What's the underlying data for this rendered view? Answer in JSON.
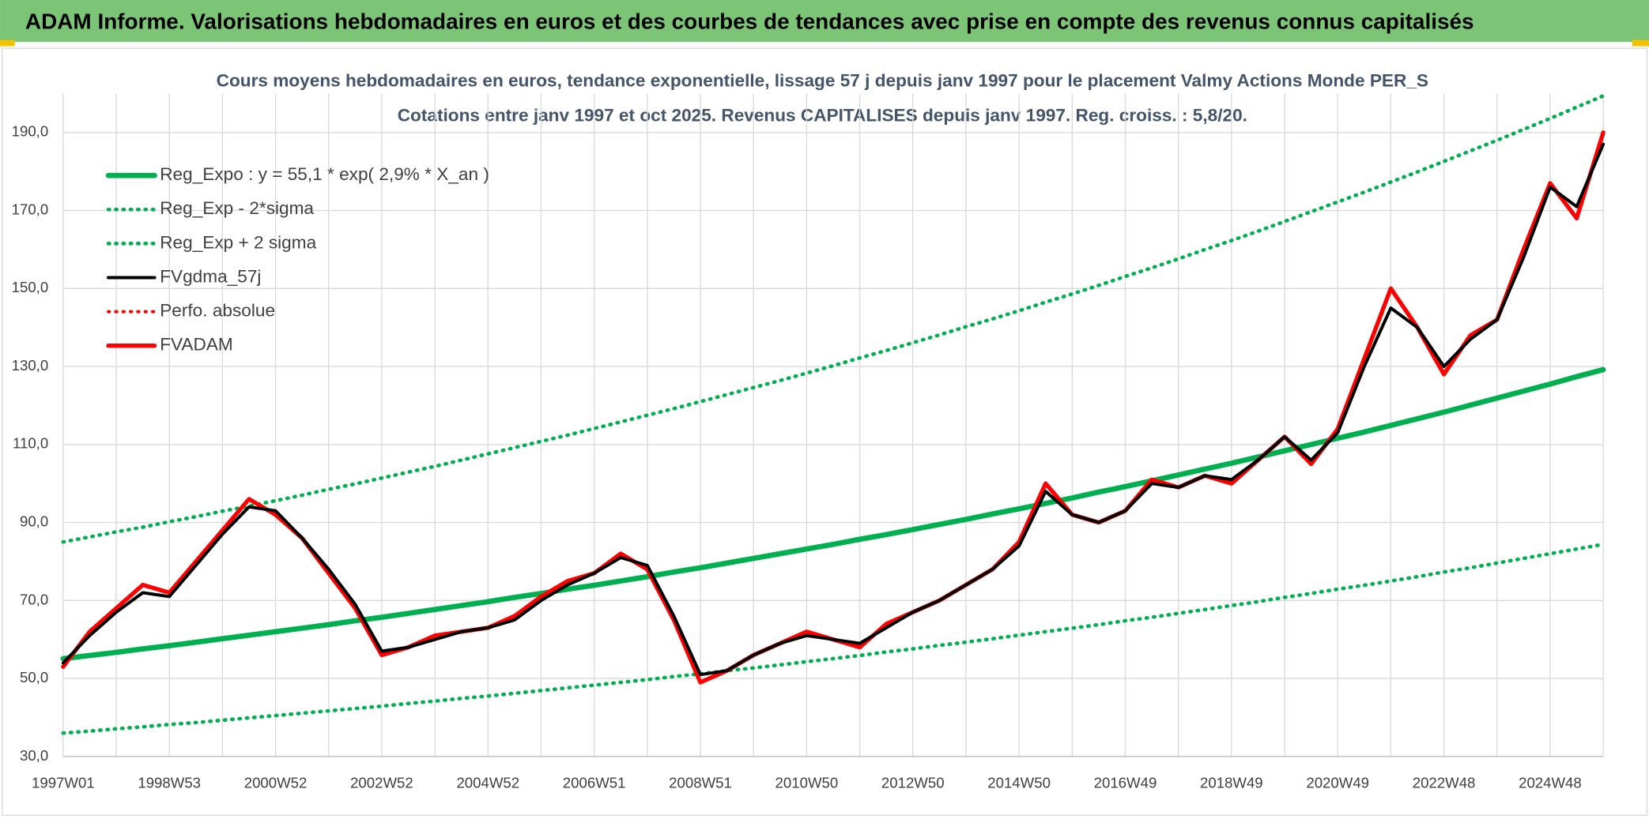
{
  "header": {
    "title": "ADAM Informe. Valorisations hebdomadaires en euros et des courbes de tendances avec prise en compte des revenus connus capitalisés"
  },
  "chart_data": {
    "type": "line",
    "title": "Cours moyens hebdomadaires en euros, tendance exponentielle, lissage 57 j depuis janv 1997 pour le placement Valmy Actions Monde PER_S",
    "subtitle": "Cotations entre janv 1997 et oct 2025. Revenus CAPITALISES depuis janv 1997. Reg. croiss. : 5,8/20.",
    "categories": [
      "1997W01",
      null,
      null,
      null,
      "1998W53",
      null,
      null,
      null,
      "2000W52",
      null,
      null,
      null,
      "2002W52",
      null,
      null,
      null,
      "2004W52",
      null,
      null,
      null,
      "2006W51",
      null,
      null,
      null,
      "2008W51",
      null,
      null,
      null,
      "2010W50",
      null,
      null,
      null,
      "2012W50",
      null,
      null,
      null,
      "2014W50",
      null,
      null,
      null,
      "2016W49",
      null,
      null,
      null,
      "2018W49",
      null,
      null,
      null,
      "2020W49",
      null,
      null,
      null,
      "2022W48",
      null,
      null,
      null,
      "2024W48",
      null,
      null
    ],
    "ylim": [
      30,
      200
    ],
    "yticks": [
      {
        "value": 30,
        "label": "30,0"
      },
      {
        "value": 50,
        "label": "50,0"
      },
      {
        "value": 70,
        "label": "70,0"
      },
      {
        "value": 90,
        "label": "90,0"
      },
      {
        "value": 110,
        "label": "110,0"
      },
      {
        "value": 130,
        "label": "130,0"
      },
      {
        "value": 150,
        "label": "150,0"
      },
      {
        "value": 170,
        "label": "170,0"
      },
      {
        "value": 190,
        "label": "190,0"
      }
    ],
    "grid": true,
    "legend": "upper left",
    "series": [
      {
        "name": "Reg_Expo : y = 55,1 * exp( 2,9% *  X_an )",
        "color": "#00b050",
        "linestyle": "solid",
        "values": [
          55.1,
          55.9,
          56.7,
          57.6,
          58.4,
          59.3,
          60.2,
          61.1,
          62.0,
          62.9,
          63.8,
          64.8,
          65.7,
          66.7,
          67.7,
          68.7,
          69.7,
          70.8,
          71.8,
          72.9,
          73.9,
          75.0,
          76.1,
          77.3,
          78.4,
          79.6,
          80.8,
          82.0,
          83.2,
          84.4,
          85.7,
          86.9,
          88.2,
          89.5,
          90.8,
          92.2,
          93.5,
          94.9,
          96.3,
          97.8,
          99.2,
          100.7,
          102.2,
          103.7,
          105.2,
          106.8,
          108.4,
          110.0,
          111.6,
          113.2,
          114.9,
          116.6,
          118.3,
          120.1,
          121.9,
          123.7,
          125.5,
          127.4,
          129.2
        ]
      },
      {
        "name": "Reg_Exp - 2*sigma",
        "color": "#00b050",
        "linestyle": "dotted",
        "values": [
          36.0,
          36.5,
          37.1,
          37.6,
          38.2,
          38.7,
          39.3,
          39.9,
          40.5,
          41.1,
          41.7,
          42.3,
          42.9,
          43.6,
          44.2,
          44.9,
          45.5,
          46.2,
          46.9,
          47.6,
          48.3,
          49.0,
          49.7,
          50.5,
          51.2,
          52.0,
          52.7,
          53.5,
          54.3,
          55.1,
          55.9,
          56.8,
          57.6,
          58.5,
          59.3,
          60.2,
          61.1,
          62.0,
          62.9,
          63.8,
          64.8,
          65.7,
          66.7,
          67.7,
          68.7,
          69.7,
          70.8,
          71.8,
          72.9,
          73.9,
          75.0,
          76.1,
          77.3,
          78.4,
          79.6,
          80.8,
          82.0,
          83.2,
          84.4
        ]
      },
      {
        "name": "Reg_Exp + 2 sigma",
        "color": "#00b050",
        "linestyle": "dotted",
        "values": [
          85.0,
          86.3,
          87.6,
          88.8,
          90.2,
          91.5,
          92.9,
          94.2,
          95.6,
          97.0,
          98.5,
          99.9,
          101.4,
          102.9,
          104.4,
          106.0,
          107.6,
          109.2,
          110.8,
          112.4,
          114.1,
          115.8,
          117.5,
          119.2,
          121.0,
          122.8,
          124.6,
          126.4,
          128.3,
          130.2,
          132.2,
          134.1,
          136.1,
          138.1,
          140.2,
          142.2,
          144.3,
          146.5,
          148.6,
          150.8,
          153.1,
          155.3,
          157.6,
          160.0,
          162.3,
          164.7,
          167.2,
          169.7,
          172.2,
          174.7,
          177.3,
          179.9,
          182.6,
          185.3,
          188.0,
          190.8,
          193.6,
          196.5,
          199.4
        ]
      },
      {
        "name": "FVgdma_57j",
        "color": "#000000",
        "linestyle": "solid",
        "values": [
          54,
          61,
          67,
          72,
          71,
          79,
          87,
          94,
          93,
          86,
          78,
          69,
          57,
          58,
          60,
          62,
          63,
          65,
          70,
          74,
          77,
          81,
          79,
          66,
          51,
          52,
          56,
          59,
          61,
          60,
          59,
          63,
          67,
          70,
          74,
          78,
          84,
          98,
          92,
          90,
          93,
          100,
          99,
          102,
          101,
          106,
          112,
          106,
          113,
          130,
          145,
          140,
          130,
          137,
          142,
          158,
          176,
          171,
          187
        ]
      },
      {
        "name": "Perfo. absolue",
        "color": "#ff0000",
        "linestyle": "dotted",
        "values": [
          null,
          null,
          null,
          null,
          null,
          null,
          null,
          null,
          null,
          null,
          null,
          null,
          null,
          null,
          null,
          null,
          null,
          null,
          null,
          null,
          null,
          null,
          null,
          null,
          null,
          null,
          null,
          null,
          null,
          null,
          null,
          null,
          null,
          null,
          null,
          null,
          null,
          null,
          null,
          null,
          null,
          null,
          null,
          null,
          null,
          null,
          null,
          null,
          null,
          null,
          null,
          null,
          null,
          null,
          null,
          null,
          null,
          null,
          null
        ]
      },
      {
        "name": "FVADAM",
        "color": "#ff0000",
        "linestyle": "solid",
        "values": [
          53,
          62,
          68,
          74,
          72,
          80,
          88,
          96,
          92,
          86,
          77,
          68,
          56,
          58,
          61,
          62,
          63,
          66,
          71,
          75,
          77,
          82,
          78,
          65,
          49,
          52,
          56,
          59,
          62,
          60,
          58,
          64,
          67,
          70,
          74,
          78,
          85,
          100,
          92,
          90,
          93,
          101,
          99,
          102,
          100,
          106,
          112,
          105,
          114,
          132,
          150,
          140,
          128,
          138,
          142,
          160,
          177,
          168,
          190
        ]
      }
    ]
  }
}
